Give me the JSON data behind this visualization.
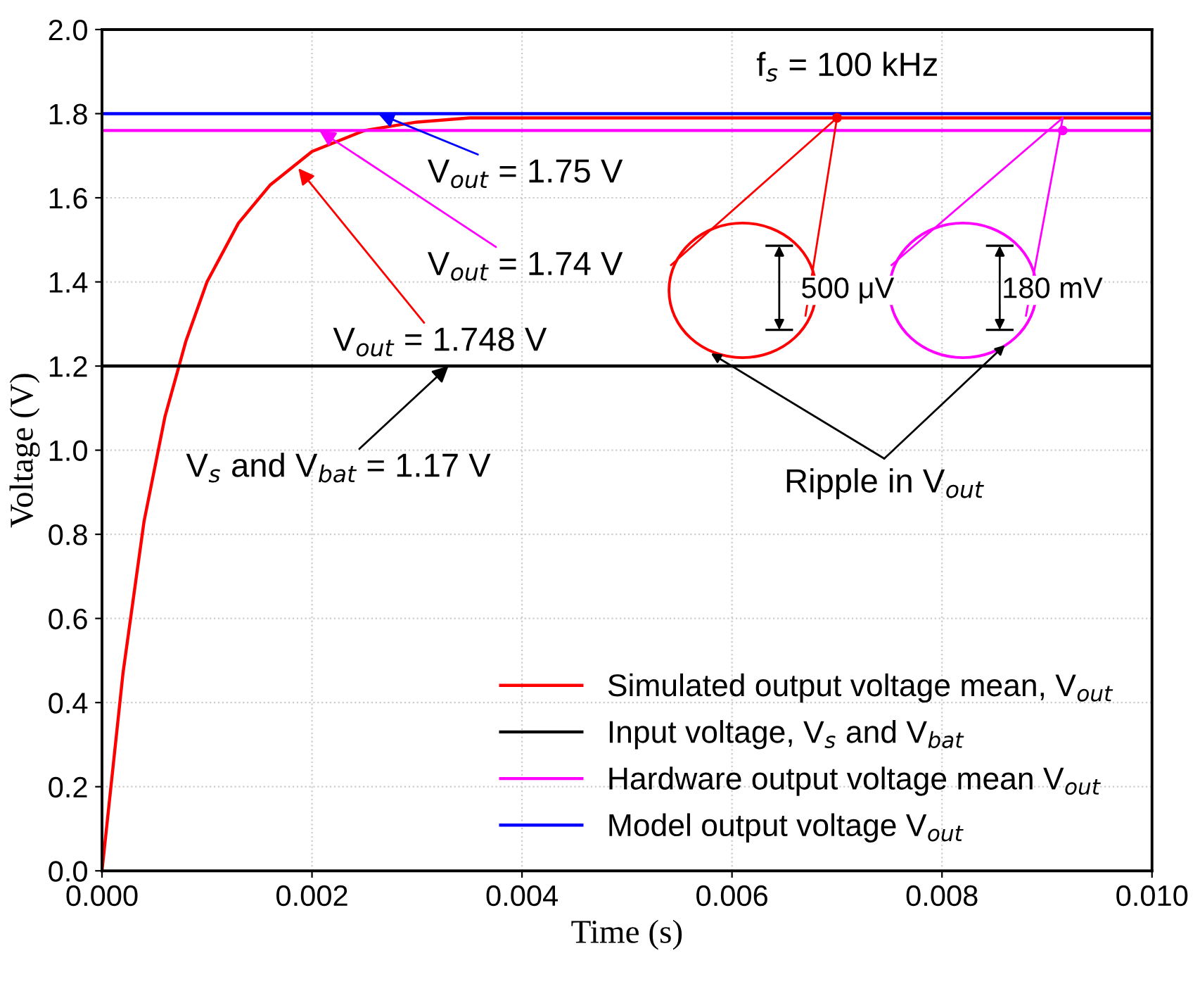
{
  "chart_data": {
    "type": "line",
    "xlabel": "Time (s)",
    "ylabel": "Voltage (V)",
    "xlim": [
      0,
      0.01
    ],
    "ylim": [
      0,
      2.0
    ],
    "xticks": [
      {
        "value": 0,
        "label": "0.000"
      },
      {
        "value": 0.002,
        "label": "0.002"
      },
      {
        "value": 0.004,
        "label": "0.004"
      },
      {
        "value": 0.006,
        "label": "0.006"
      },
      {
        "value": 0.008,
        "label": "0.008"
      },
      {
        "value": 0.01,
        "label": "0.010"
      }
    ],
    "yticks": [
      {
        "value": 0,
        "label": "0.0"
      },
      {
        "value": 0.2,
        "label": "0.2"
      },
      {
        "value": 0.4,
        "label": "0.4"
      },
      {
        "value": 0.6,
        "label": "0.6"
      },
      {
        "value": 0.8,
        "label": "0.8"
      },
      {
        "value": 1.0,
        "label": "1.0"
      },
      {
        "value": 1.2,
        "label": "1.2"
      },
      {
        "value": 1.4,
        "label": "1.4"
      },
      {
        "value": 1.6,
        "label": "1.6"
      },
      {
        "value": 1.8,
        "label": "1.8"
      },
      {
        "value": 2.0,
        "label": "2.0"
      }
    ],
    "grid": true,
    "legend": "bottom right",
    "marker": "none",
    "line_style": "solid",
    "series": [
      {
        "name": "Simulated output voltage mean, V$_{out}$",
        "color": "#ff0000",
        "x": [
          0,
          0.0002,
          0.0004,
          0.0006,
          0.0008,
          0.001,
          0.0013,
          0.0016,
          0.002,
          0.0025,
          0.003,
          0.0035,
          0.004,
          0.005,
          0.006,
          0.007,
          0.008,
          0.009,
          0.01
        ],
        "values": [
          0,
          0.47,
          0.83,
          1.08,
          1.26,
          1.4,
          1.54,
          1.63,
          1.71,
          1.76,
          1.78,
          1.79,
          1.79,
          1.79,
          1.79,
          1.79,
          1.79,
          1.79,
          1.79
        ]
      },
      {
        "name": "Input voltage, V$_{s}$ and V$_{bat}$",
        "color": "#000000",
        "x": [
          0,
          0.01
        ],
        "values": [
          1.2,
          1.2
        ]
      },
      {
        "name": "Hardware output voltage mean V$_{out}$",
        "color": "#ff00ff",
        "x": [
          0,
          0.01
        ],
        "values": [
          1.76,
          1.76
        ]
      },
      {
        "name": "Model output voltage V$_{out}$",
        "color": "#0000ff",
        "x": [
          0,
          0.01
        ],
        "values": [
          1.8,
          1.8
        ]
      }
    ],
    "annotations": [
      {
        "text": "V$_{out}$ = 1.75 V",
        "x": 0.00263,
        "y": 1.8
      },
      {
        "text": "V$_{out}$ = 1.74 V",
        "x": 0.00207,
        "y": 1.76
      },
      {
        "text": "V$_{out}$ = 1.748 V",
        "x": 0.00187,
        "y": 1.67
      },
      {
        "text": "V$_{s}$ and V$_{bat}$ = 1.17 V",
        "x": 0.0033,
        "y": 1.2
      },
      "f$_{s}$ = 100 kHz",
      "500 μV",
      "180 mV",
      "Ripple in V$_{out}$"
    ]
  }
}
